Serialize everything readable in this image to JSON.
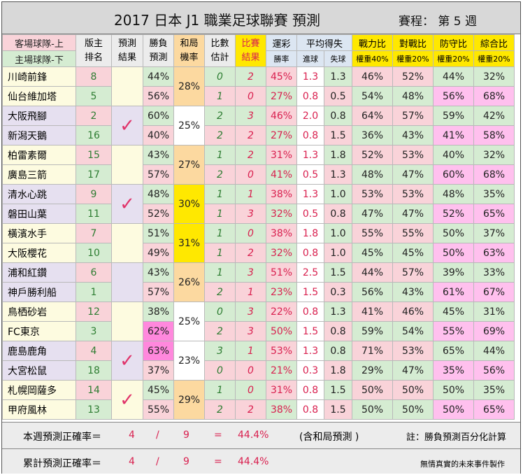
{
  "title": "2017 日本 J1 職業足球聯賽 預測",
  "week_label": "賽程： 第 5 週",
  "headers": {
    "team_top": "客場球隊-上",
    "team_bottom": "主場球隊-下",
    "rank": "版主 排名",
    "pred_result": "預測 結果",
    "win_pred": "勝負 預測",
    "draw_prob": "和局 機率",
    "score_est": "比數 估計",
    "match_result": "比賽 結果",
    "luck": "運彩",
    "luck_sub": "勝率",
    "avg": "平均得失",
    "avg_for": "進球",
    "avg_against": "失球",
    "power": "戰力比",
    "power_sub": "權重40%",
    "record": "對戰比",
    "record_sub": "權重20%",
    "defense": "防守比",
    "defense_sub": "權重20%",
    "overall": "綜合比",
    "overall_sub": "權重20%"
  },
  "matches": [
    {
      "draw": "28%",
      "check": "",
      "draw_bg": "#fcd9a0",
      "teams": [
        {
          "name": "川崎前鋒",
          "rank": "8",
          "win": "44%",
          "score": "0",
          "result": "2",
          "luck": "45%",
          "gf": "1.3",
          "ga": "1.3",
          "power": "46%",
          "record": "52%",
          "defense": "44%",
          "overall": "32%"
        },
        {
          "name": "仙台維加塔",
          "rank": "5",
          "win": "56%",
          "score": "1",
          "result": "0",
          "luck": "27%",
          "gf": "0.8",
          "ga": "0.5",
          "power": "54%",
          "record": "48%",
          "defense": "56%",
          "overall": "68%"
        }
      ]
    },
    {
      "draw": "25%",
      "check": "✓",
      "draw_bg": "#ffffff",
      "teams": [
        {
          "name": "大阪飛腳",
          "rank": "2",
          "win": "60%",
          "score": "2",
          "result": "3",
          "luck": "46%",
          "gf": "2.0",
          "ga": "0.8",
          "power": "64%",
          "record": "57%",
          "defense": "59%",
          "overall": "42%"
        },
        {
          "name": "新潟天鵝",
          "rank": "16",
          "win": "40%",
          "score": "2",
          "result": "2",
          "luck": "27%",
          "gf": "0.8",
          "ga": "1.5",
          "power": "36%",
          "record": "43%",
          "defense": "41%",
          "overall": "58%"
        }
      ]
    },
    {
      "draw": "27%",
      "check": "",
      "draw_bg": "#fcd9a0",
      "teams": [
        {
          "name": "柏雷素爾",
          "rank": "15",
          "win": "43%",
          "score": "1",
          "result": "2",
          "luck": "31%",
          "gf": "1.3",
          "ga": "1.8",
          "power": "52%",
          "record": "53%",
          "defense": "40%",
          "overall": "32%"
        },
        {
          "name": "廣島三箭",
          "rank": "17",
          "win": "57%",
          "score": "2",
          "result": "0",
          "luck": "41%",
          "gf": "0.5",
          "ga": "1.3",
          "power": "48%",
          "record": "47%",
          "defense": "60%",
          "overall": "68%"
        }
      ]
    },
    {
      "draw": "30%",
      "check": "✓",
      "draw_bg": "#ffe800",
      "teams": [
        {
          "name": "清水心跳",
          "rank": "9",
          "win": "48%",
          "score": "1",
          "result": "1",
          "luck": "38%",
          "gf": "1.3",
          "ga": "1.0",
          "power": "53%",
          "record": "53%",
          "defense": "48%",
          "overall": "35%"
        },
        {
          "name": "磐田山葉",
          "rank": "11",
          "win": "52%",
          "score": "1",
          "result": "3",
          "luck": "32%",
          "gf": "0.5",
          "ga": "0.8",
          "power": "47%",
          "record": "47%",
          "defense": "52%",
          "overall": "65%"
        }
      ]
    },
    {
      "draw": "31%",
      "check": "",
      "draw_bg": "#ffe800",
      "teams": [
        {
          "name": "橫濱水手",
          "rank": "7",
          "win": "51%",
          "score": "1",
          "result": "0",
          "luck": "38%",
          "gf": "1.8",
          "ga": "1.0",
          "power": "55%",
          "record": "55%",
          "defense": "50%",
          "overall": "37%"
        },
        {
          "name": "大阪櫻花",
          "rank": "10",
          "win": "49%",
          "score": "1",
          "result": "2",
          "luck": "32%",
          "gf": "0.8",
          "ga": "1.0",
          "power": "45%",
          "record": "45%",
          "defense": "50%",
          "overall": "63%"
        }
      ]
    },
    {
      "draw": "26%",
      "check": "",
      "draw_bg": "#fcd9a0",
      "teams": [
        {
          "name": "浦和紅鑽",
          "rank": "6",
          "win": "43%",
          "score": "1",
          "result": "3",
          "luck": "51%",
          "gf": "2.5",
          "ga": "1.5",
          "power": "44%",
          "record": "57%",
          "defense": "39%",
          "overall": "33%"
        },
        {
          "name": "神戶勝利船",
          "rank": "1",
          "win": "57%",
          "score": "2",
          "result": "1",
          "luck": "23%",
          "gf": "1.5",
          "ga": "0.3",
          "power": "56%",
          "record": "43%",
          "defense": "61%",
          "overall": "67%"
        }
      ]
    },
    {
      "draw": "25%",
      "check": "",
      "draw_bg": "#ffffff",
      "teams": [
        {
          "name": "鳥栖砂岩",
          "rank": "12",
          "win": "38%",
          "score": "0",
          "result": "3",
          "luck": "22%",
          "gf": "0.8",
          "ga": "1.3",
          "power": "41%",
          "record": "46%",
          "defense": "45%",
          "overall": "31%"
        },
        {
          "name": "FC東京",
          "rank": "3",
          "win": "62%",
          "score": "2",
          "result": "3",
          "luck": "50%",
          "gf": "1.5",
          "ga": "0.8",
          "power": "59%",
          "record": "54%",
          "defense": "55%",
          "overall": "69%"
        }
      ]
    },
    {
      "draw": "23%",
      "check": "✓",
      "draw_bg": "#ffffff",
      "teams": [
        {
          "name": "鹿島鹿角",
          "rank": "4",
          "win": "63%",
          "score": "3",
          "result": "1",
          "luck": "53%",
          "gf": "1.3",
          "ga": "0.8",
          "power": "71%",
          "record": "53%",
          "defense": "65%",
          "overall": "44%"
        },
        {
          "name": "大宮松鼠",
          "rank": "18",
          "win": "37%",
          "score": "0",
          "result": "0",
          "luck": "21%",
          "gf": "0.3",
          "ga": "1.8",
          "power": "29%",
          "record": "47%",
          "defense": "35%",
          "overall": "56%"
        }
      ]
    },
    {
      "draw": "29%",
      "check": "✓",
      "draw_bg": "#fcd9a0",
      "teams": [
        {
          "name": "札幌岡薩多",
          "rank": "14",
          "win": "45%",
          "score": "1",
          "result": "0",
          "luck": "31%",
          "gf": "0.8",
          "ga": "1.5",
          "power": "50%",
          "record": "50%",
          "defense": "50%",
          "overall": "35%"
        },
        {
          "name": "甲府風林",
          "rank": "13",
          "win": "55%",
          "score": "2",
          "result": "2",
          "luck": "38%",
          "gf": "0.8",
          "ga": "1.5",
          "power": "50%",
          "record": "50%",
          "defense": "50%",
          "overall": "65%"
        }
      ]
    }
  ],
  "footer": {
    "week_label": "本週預測正確率＝",
    "week_correct": "4",
    "week_slash": "/",
    "week_total": "9",
    "week_eq": "=",
    "week_pct": "44.4%",
    "note_draw": "(含和局預測 )",
    "note_right": "註：勝負預測百分化計算",
    "cum_label": "累計預測正確率＝",
    "cum_correct": "4",
    "cum_slash": "/",
    "cum_total": "9",
    "cum_eq": "=",
    "cum_pct": "44.4%",
    "credit": "無情真實的未來事件製作"
  },
  "colors": {
    "header_bg": "#d8d8d8",
    "team_row_a": "#fdfbe0",
    "team_row_b": "#e6e0f0",
    "pink": "#f9d3d9",
    "green": "#d5ecd2",
    "magenta_high": "#ff88dd",
    "lavender_high": "#ffb3f2",
    "pink_high": "#ffc0ee",
    "yellow_hdr": "#ffe800",
    "blue_hdr": "#dce6f2",
    "peach_hdr": "#fcd9a0"
  }
}
